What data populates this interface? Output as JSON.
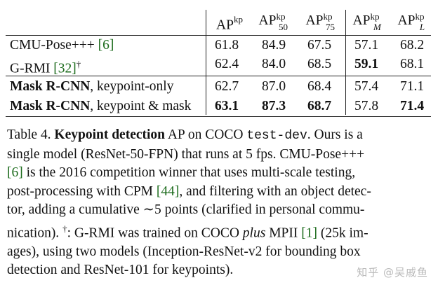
{
  "table": {
    "headers": [
      {
        "base": "AP",
        "sup": "kp",
        "sub": ""
      },
      {
        "base": "AP",
        "sup": "kp",
        "sub": "50"
      },
      {
        "base": "AP",
        "sup": "kp",
        "sub": "75"
      },
      {
        "base": "AP",
        "sup": "kp",
        "sub": "M"
      },
      {
        "base": "AP",
        "sup": "kp",
        "sub": "L"
      }
    ],
    "rows": [
      {
        "method": "CMU-Pose+++ ",
        "ref": "[6]",
        "suffix": "",
        "bold_name": "",
        "rest": "",
        "values": [
          "61.8",
          "84.9",
          "67.5",
          "57.1",
          "68.2"
        ],
        "bold": [
          false,
          false,
          false,
          false,
          false
        ]
      },
      {
        "method": "G-RMI ",
        "ref": "[32]",
        "suffix": "†",
        "bold_name": "",
        "rest": "",
        "values": [
          "62.4",
          "84.0",
          "68.5",
          "59.1",
          "68.1"
        ],
        "bold": [
          false,
          false,
          false,
          true,
          false
        ]
      },
      {
        "method": "",
        "ref": "",
        "suffix": "",
        "bold_name": "Mask R-CNN",
        "rest": ", keypoint-only",
        "values": [
          "62.7",
          "87.0",
          "68.4",
          "57.4",
          "71.1"
        ],
        "bold": [
          false,
          false,
          false,
          false,
          false
        ]
      },
      {
        "method": "",
        "ref": "",
        "suffix": "",
        "bold_name": "Mask R-CNN",
        "rest": ", keypoint & mask",
        "values": [
          "63.1",
          "87.3",
          "68.7",
          "57.8",
          "71.4"
        ],
        "bold": [
          true,
          true,
          true,
          false,
          true
        ]
      }
    ]
  },
  "caption": {
    "label": "Table 4. ",
    "bold": "Keypoint detection",
    "l1a": " AP on COCO ",
    "mono": "test-dev",
    "l1b": ". Ours is a",
    "l2": "single model (ResNet-50-FPN) that runs at 5 fps. CMU-Pose+++",
    "l3_ref": "[6]",
    "l3": " is the 2016 competition winner that uses multi-scale testing,",
    "l4a": "post-processing with CPM ",
    "l4_ref": "[44]",
    "l4b": ", and filtering with an object detec-",
    "l5": "tor, adding a cumulative ∼5 points (clarified in personal commu-",
    "l6a": "nication). ",
    "l6_dag": "†",
    "l6b": ": G-RMI was trained on COCO ",
    "l6_it": "plus",
    "l6c": " MPII ",
    "l6_ref": "[1]",
    "l6d": " (25k im-",
    "l7": "ages), using two models (Inception-ResNet-v2 for bounding box",
    "l8": "detection and ResNet-101 for keypoints)."
  },
  "watermark": "知乎 @吴戚鱼"
}
